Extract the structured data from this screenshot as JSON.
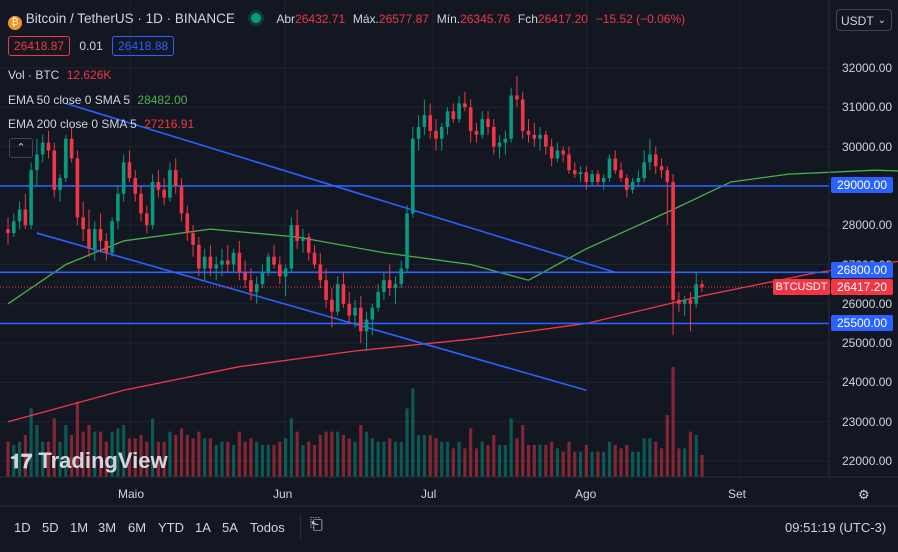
{
  "header": {
    "symbol": "Bitcoin / TetherUS · 1D · BINANCE",
    "o_label": "Abr",
    "o_val": "26432.71",
    "h_label": "Máx.",
    "h_val": "26577.87",
    "l_label": "Mín.",
    "l_val": "26345.76",
    "c_label": "Fch",
    "c_val": "26417.20",
    "change": "−15.52 (−0.06%)",
    "sell_price": "26418.87",
    "spread": "0.01",
    "buy_price": "26418.88",
    "currency_button": "USDT"
  },
  "indicators": {
    "vol_label": "Vol · BTC",
    "vol_val": "12.626K",
    "ema50_label": "EMA 50 close 0 SMA 5",
    "ema50_val": "28482.00",
    "ema200_label": "EMA 200 close 0 SMA 5",
    "ema200_val": "27216.91"
  },
  "watermark": "TradingView",
  "timeframes": [
    "1D",
    "5D",
    "1M",
    "3M",
    "6M",
    "YTD",
    "1A",
    "5A",
    "Todos"
  ],
  "clock": "09:51:19 (UTC-3)",
  "price_tags": {
    "symbol_tag": "BTCUSDT",
    "last": "26417.20",
    "h1": "29000.00",
    "h2": "26800.00",
    "h3": "25500.00"
  },
  "colors": {
    "up": "#089981",
    "down": "#f23645",
    "hline": "#2962ff",
    "ema50": "#4caf50",
    "ema200": "#f23645",
    "background": "#131722"
  },
  "chart_data": {
    "type": "candlestick",
    "y_ticks": [
      "32000.00",
      "31000.00",
      "30000.00",
      "29000.00",
      "28000.00",
      "27000.00",
      "26000.00",
      "25000.00",
      "24000.00",
      "23000.00",
      "22000.00"
    ],
    "x_ticks": [
      "Maio",
      "Jun",
      "Jul",
      "Ago",
      "Set"
    ],
    "ylim": [
      21500,
      32600
    ],
    "horizontal_levels": [
      29000,
      26800,
      25500
    ],
    "last_price": 26417.2,
    "ema50": [
      [
        0,
        26000
      ],
      [
        10,
        27000
      ],
      [
        20,
        27600
      ],
      [
        35,
        27900
      ],
      [
        50,
        27700
      ],
      [
        65,
        27300
      ],
      [
        80,
        27000
      ],
      [
        90,
        26600
      ],
      [
        100,
        27400
      ],
      [
        115,
        28400
      ],
      [
        125,
        29100
      ],
      [
        135,
        29300
      ],
      [
        150,
        29400
      ],
      [
        160,
        29350
      ],
      [
        170,
        29250
      ],
      [
        175,
        28800
      ],
      [
        178,
        28500
      ]
    ],
    "ema200": [
      [
        0,
        23000
      ],
      [
        20,
        23800
      ],
      [
        40,
        24400
      ],
      [
        60,
        24800
      ],
      [
        80,
        25100
      ],
      [
        100,
        25500
      ],
      [
        120,
        26200
      ],
      [
        140,
        26800
      ],
      [
        160,
        27200
      ],
      [
        168,
        27300
      ],
      [
        178,
        27200
      ]
    ],
    "trendlines": [
      {
        "from": [
          10,
          31100
        ],
        "to": [
          105,
          26800
        ]
      },
      {
        "from": [
          5,
          27800
        ],
        "to": [
          100,
          23800
        ]
      }
    ],
    "candles_ohlc": [
      [
        27900,
        28200,
        27500,
        27800
      ],
      [
        27800,
        28300,
        27700,
        28100
      ],
      [
        28100,
        28600,
        27900,
        28400
      ],
      [
        28400,
        28800,
        27900,
        28000
      ],
      [
        28000,
        29600,
        27900,
        29400
      ],
      [
        29400,
        30200,
        29000,
        29800
      ],
      [
        29800,
        30300,
        29600,
        30100
      ],
      [
        30100,
        30400,
        29700,
        29900
      ],
      [
        29900,
        30100,
        28700,
        28900
      ],
      [
        28900,
        29300,
        28600,
        29200
      ],
      [
        29200,
        30300,
        29100,
        30200
      ],
      [
        30200,
        30500,
        29600,
        29700
      ],
      [
        29700,
        29900,
        28000,
        28200
      ],
      [
        28200,
        28600,
        27600,
        27900
      ],
      [
        27900,
        28400,
        27200,
        27400
      ],
      [
        27400,
        28100,
        27100,
        27900
      ],
      [
        27900,
        28300,
        27300,
        27600
      ],
      [
        27600,
        27800,
        27100,
        27300
      ],
      [
        27300,
        28200,
        27200,
        28100
      ],
      [
        28100,
        29000,
        27900,
        28800
      ],
      [
        28800,
        29800,
        28600,
        29600
      ],
      [
        29600,
        29900,
        29100,
        29200
      ],
      [
        29200,
        29400,
        28600,
        28800
      ],
      [
        28800,
        29000,
        28100,
        28300
      ],
      [
        28300,
        28500,
        27800,
        28000
      ],
      [
        28000,
        29300,
        27900,
        29100
      ],
      [
        29100,
        29400,
        28700,
        28900
      ],
      [
        28900,
        29200,
        28500,
        28700
      ],
      [
        28700,
        29600,
        28600,
        29400
      ],
      [
        29400,
        29700,
        28800,
        29000
      ],
      [
        29000,
        29200,
        28100,
        28300
      ],
      [
        28300,
        28500,
        27600,
        27800
      ],
      [
        27800,
        28000,
        27200,
        27500
      ],
      [
        27500,
        27700,
        26700,
        26900
      ],
      [
        26900,
        27400,
        26600,
        27200
      ],
      [
        27200,
        27500,
        26700,
        26900
      ],
      [
        26900,
        27200,
        26600,
        27000
      ],
      [
        27000,
        27400,
        26700,
        27100
      ],
      [
        27100,
        27500,
        26800,
        27000
      ],
      [
        27000,
        27400,
        26800,
        27300
      ],
      [
        27300,
        27600,
        26600,
        26800
      ],
      [
        26800,
        27100,
        26400,
        26600
      ],
      [
        26600,
        26900,
        26100,
        26300
      ],
      [
        26300,
        26700,
        26000,
        26500
      ],
      [
        26500,
        27000,
        26400,
        26800
      ],
      [
        26800,
        27300,
        26700,
        27200
      ],
      [
        27200,
        27500,
        26900,
        27000
      ],
      [
        27000,
        27200,
        26500,
        26700
      ],
      [
        26700,
        27000,
        26200,
        26900
      ],
      [
        26900,
        28200,
        26800,
        28000
      ],
      [
        28000,
        28400,
        27400,
        27600
      ],
      [
        27600,
        27900,
        27300,
        27700
      ],
      [
        27700,
        27800,
        27100,
        27300
      ],
      [
        27300,
        27500,
        26900,
        27000
      ],
      [
        27000,
        27300,
        26400,
        26600
      ],
      [
        26600,
        26900,
        25900,
        26100
      ],
      [
        26100,
        26400,
        25400,
        25800
      ],
      [
        25800,
        26700,
        25700,
        26500
      ],
      [
        26500,
        26800,
        25900,
        26000
      ],
      [
        26000,
        26300,
        25500,
        25700
      ],
      [
        25700,
        26100,
        25400,
        25900
      ],
      [
        25900,
        26200,
        25000,
        25300
      ],
      [
        25300,
        25800,
        24800,
        25600
      ],
      [
        25600,
        26000,
        25200,
        25900
      ],
      [
        25900,
        26500,
        25800,
        26300
      ],
      [
        26300,
        26800,
        26100,
        26600
      ],
      [
        26600,
        27000,
        26200,
        26400
      ],
      [
        26400,
        26700,
        26000,
        26500
      ],
      [
        26500,
        27100,
        26400,
        26900
      ],
      [
        26900,
        28500,
        26800,
        28300
      ],
      [
        28300,
        30500,
        28200,
        30200
      ],
      [
        30200,
        30800,
        29900,
        30500
      ],
      [
        30500,
        31200,
        30300,
        30800
      ],
      [
        30800,
        31100,
        30200,
        30400
      ],
      [
        30400,
        30700,
        29900,
        30200
      ],
      [
        30200,
        30600,
        29900,
        30500
      ],
      [
        30500,
        31000,
        30300,
        30900
      ],
      [
        30900,
        31100,
        30600,
        30700
      ],
      [
        30700,
        31300,
        30600,
        31100
      ],
      [
        31100,
        31400,
        30900,
        31000
      ],
      [
        31000,
        31200,
        30100,
        30400
      ],
      [
        30400,
        30600,
        30100,
        30300
      ],
      [
        30300,
        30900,
        30200,
        30700
      ],
      [
        30700,
        30900,
        30300,
        30500
      ],
      [
        30500,
        30700,
        29800,
        30000
      ],
      [
        30000,
        30300,
        29700,
        30100
      ],
      [
        30100,
        30400,
        29800,
        30200
      ],
      [
        30200,
        31500,
        30100,
        31300
      ],
      [
        31300,
        31800,
        31000,
        31200
      ],
      [
        31200,
        31400,
        30200,
        30400
      ],
      [
        30400,
        30700,
        30100,
        30300
      ],
      [
        30300,
        30600,
        30000,
        30200
      ],
      [
        30200,
        30500,
        29900,
        30300
      ],
      [
        30300,
        30400,
        29800,
        30000
      ],
      [
        30000,
        30200,
        29500,
        29700
      ],
      [
        29700,
        30100,
        29600,
        29900
      ],
      [
        29900,
        30000,
        29600,
        29800
      ],
      [
        29800,
        30000,
        29300,
        29400
      ],
      [
        29400,
        29600,
        29200,
        29300
      ],
      [
        29300,
        29500,
        29100,
        29350
      ],
      [
        29350,
        29500,
        28900,
        29100
      ],
      [
        29100,
        29400,
        29000,
        29300
      ],
      [
        29300,
        29400,
        29000,
        29100
      ],
      [
        29100,
        29300,
        28900,
        29200
      ],
      [
        29200,
        29800,
        29100,
        29700
      ],
      [
        29700,
        29900,
        29300,
        29400
      ],
      [
        29400,
        29600,
        29100,
        29200
      ],
      [
        29200,
        29300,
        28700,
        28900
      ],
      [
        28900,
        29200,
        28800,
        29100
      ],
      [
        29100,
        29400,
        29000,
        29200
      ],
      [
        29200,
        29900,
        29100,
        29600
      ],
      [
        29600,
        30200,
        29400,
        29800
      ],
      [
        29800,
        30000,
        29300,
        29500
      ],
      [
        29500,
        29700,
        29200,
        29400
      ],
      [
        29400,
        29500,
        28000,
        29100
      ],
      [
        29100,
        29300,
        25200,
        26100
      ],
      [
        26100,
        26300,
        25800,
        26000
      ],
      [
        26000,
        26200,
        25700,
        26100
      ],
      [
        26100,
        26300,
        25300,
        26000
      ],
      [
        26000,
        26800,
        25900,
        26500
      ],
      [
        26500,
        26600,
        26300,
        26417
      ]
    ]
  }
}
